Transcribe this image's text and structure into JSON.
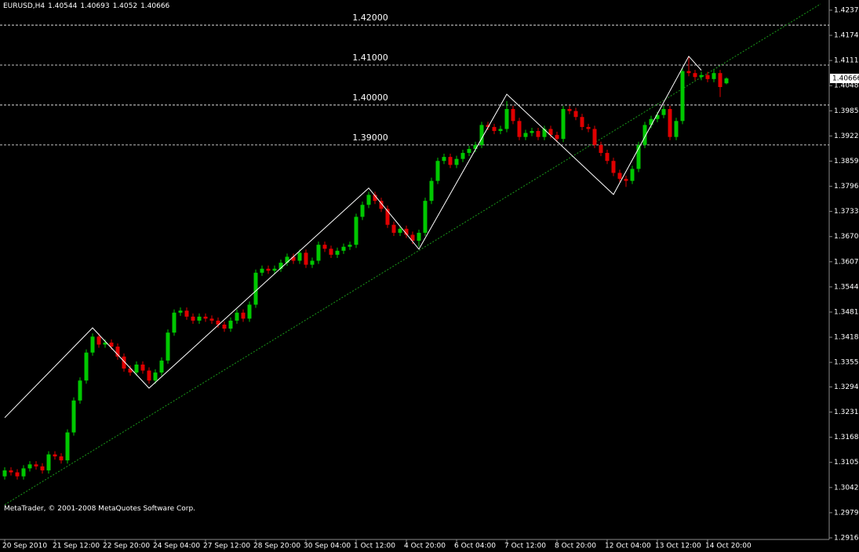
{
  "chart_data": {
    "type": "candlestick",
    "title": "EURUSD,H4",
    "footer": "MetaTrader, © 2001-2008 MetaQuotes Software Corp.",
    "categories": [
      "20 Sep 2010",
      null,
      null,
      null,
      null,
      null,
      null,
      null,
      "21 Sep 12:00",
      null,
      null,
      null,
      null,
      null,
      null,
      null,
      "22 Sep 20:00",
      null,
      null,
      null,
      null,
      null,
      null,
      null,
      "24 Sep 04:00",
      null,
      null,
      null,
      null,
      null,
      null,
      null,
      "27 Sep 12:00",
      null,
      null,
      null,
      null,
      null,
      null,
      null,
      "28 Sep 20:00",
      null,
      null,
      null,
      null,
      null,
      null,
      null,
      "30 Sep 04:00",
      null,
      null,
      null,
      null,
      null,
      null,
      null,
      "1 Oct 12:00",
      null,
      null,
      null,
      null,
      null,
      null,
      null,
      "4 Oct 20:00",
      null,
      null,
      null,
      null,
      null,
      null,
      null,
      "6 Oct 04:00",
      null,
      null,
      null,
      null,
      null,
      null,
      null,
      "7 Oct 12:00",
      null,
      null,
      null,
      null,
      null,
      null,
      null,
      "8 Oct 20:00",
      null,
      null,
      null,
      null,
      null,
      null,
      null,
      "12 Oct 04:00",
      null,
      null,
      null,
      null,
      null,
      null,
      null,
      "13 Oct 12:00",
      null,
      null,
      null,
      null,
      null,
      null,
      null,
      "14 Oct 20:00",
      null,
      null,
      null
    ],
    "open": [
      1.307,
      1.3085,
      1.308,
      1.307,
      1.309,
      1.31,
      1.3095,
      1.3085,
      1.3125,
      1.312,
      1.311,
      1.318,
      1.326,
      1.331,
      1.338,
      1.342,
      1.34,
      1.3405,
      1.3395,
      1.337,
      1.334,
      1.333,
      1.335,
      1.3335,
      1.331,
      1.333,
      1.336,
      1.343,
      1.348,
      1.3485,
      1.347,
      1.346,
      1.347,
      1.3465,
      1.346,
      1.345,
      1.344,
      1.346,
      1.348,
      1.3465,
      1.35,
      1.358,
      1.359,
      1.3585,
      1.359,
      1.3605,
      1.362,
      1.361,
      1.363,
      1.36,
      1.361,
      1.365,
      1.364,
      1.3625,
      1.3635,
      1.3645,
      1.365,
      1.372,
      1.375,
      1.3775,
      1.376,
      1.374,
      1.37,
      1.368,
      1.369,
      1.3675,
      1.366,
      1.368,
      1.376,
      1.381,
      1.386,
      1.387,
      1.385,
      1.3865,
      1.388,
      1.389,
      1.39,
      1.395,
      1.3945,
      1.3935,
      1.394,
      1.399,
      1.396,
      1.392,
      1.393,
      1.3935,
      1.392,
      1.394,
      1.3925,
      1.3915,
      1.399,
      1.3985,
      1.397,
      1.3945,
      1.394,
      1.39,
      1.388,
      1.386,
      1.383,
      1.3815,
      1.381,
      1.384,
      1.39,
      1.395,
      1.3965,
      1.3975,
      1.399,
      1.392,
      1.396,
      1.4085,
      1.408,
      1.407,
      1.4075,
      1.4065,
      1.408,
      1.40544
    ],
    "high": [
      1.3093,
      1.3093,
      1.3088,
      1.3098,
      1.3108,
      1.3108,
      1.3103,
      1.3133,
      1.3133,
      1.3128,
      1.3188,
      1.3268,
      1.3318,
      1.3388,
      1.3428,
      1.3428,
      1.3413,
      1.3413,
      1.3403,
      1.3378,
      1.3348,
      1.3358,
      1.3358,
      1.3343,
      1.3338,
      1.3368,
      1.3438,
      1.3488,
      1.3493,
      1.3493,
      1.3478,
      1.3478,
      1.3478,
      1.3473,
      1.3468,
      1.3458,
      1.3468,
      1.3488,
      1.3488,
      1.3508,
      1.3588,
      1.3598,
      1.3598,
      1.3598,
      1.3613,
      1.3628,
      1.3628,
      1.3638,
      1.3638,
      1.3618,
      1.3658,
      1.3658,
      1.3648,
      1.3643,
      1.3653,
      1.3658,
      1.3728,
      1.3758,
      1.3783,
      1.3783,
      1.3768,
      1.3748,
      1.3708,
      1.3698,
      1.3698,
      1.3683,
      1.3688,
      1.3768,
      1.3818,
      1.3868,
      1.3878,
      1.3878,
      1.3873,
      1.3888,
      1.3898,
      1.3908,
      1.3958,
      1.3958,
      1.3953,
      1.3948,
      1.401,
      1.3998,
      1.3968,
      1.3938,
      1.3943,
      1.3943,
      1.3948,
      1.3948,
      1.3933,
      1.3998,
      1.3998,
      1.3993,
      1.3978,
      1.3953,
      1.3948,
      1.3908,
      1.3888,
      1.3868,
      1.3838,
      1.3823,
      1.3848,
      1.3908,
      1.3958,
      1.3973,
      1.3983,
      1.3998,
      1.3998,
      1.3968,
      1.4093,
      1.412,
      1.4088,
      1.4083,
      1.4083,
      1.4088,
      1.4088,
      1.40693
    ],
    "low": [
      1.3062,
      1.3072,
      1.3062,
      1.3062,
      1.3082,
      1.3087,
      1.3077,
      1.3077,
      1.3112,
      1.3102,
      1.3102,
      1.3172,
      1.3252,
      1.3302,
      1.3372,
      1.3392,
      1.3392,
      1.3387,
      1.3362,
      1.3332,
      1.3322,
      1.3322,
      1.3327,
      1.3302,
      1.3302,
      1.3322,
      1.3352,
      1.3422,
      1.3472,
      1.3462,
      1.3452,
      1.3452,
      1.3457,
      1.3452,
      1.3442,
      1.3432,
      1.3432,
      1.3452,
      1.3457,
      1.3457,
      1.3492,
      1.3572,
      1.3577,
      1.3577,
      1.3582,
      1.3597,
      1.3602,
      1.3602,
      1.3592,
      1.3592,
      1.3602,
      1.3632,
      1.3617,
      1.3617,
      1.3627,
      1.3637,
      1.3642,
      1.3712,
      1.3742,
      1.3752,
      1.3732,
      1.3692,
      1.3672,
      1.3672,
      1.3667,
      1.3652,
      1.3645,
      1.3672,
      1.3752,
      1.3802,
      1.3852,
      1.3842,
      1.3842,
      1.3857,
      1.3872,
      1.3882,
      1.3892,
      1.3937,
      1.3927,
      1.3927,
      1.3932,
      1.3952,
      1.3912,
      1.3912,
      1.3922,
      1.3912,
      1.3912,
      1.3917,
      1.3907,
      1.3907,
      1.3977,
      1.3962,
      1.3937,
      1.3932,
      1.3892,
      1.3872,
      1.3852,
      1.3822,
      1.3807,
      1.3795,
      1.3802,
      1.3832,
      1.3892,
      1.3942,
      1.3957,
      1.3967,
      1.3912,
      1.3912,
      1.3952,
      1.4072,
      1.4062,
      1.4062,
      1.4057,
      1.4057,
      1.402,
      1.4052
    ],
    "close": [
      1.3085,
      1.308,
      1.307,
      1.309,
      1.31,
      1.3095,
      1.3085,
      1.3125,
      1.312,
      1.311,
      1.318,
      1.326,
      1.331,
      1.338,
      1.342,
      1.34,
      1.3405,
      1.3395,
      1.337,
      1.334,
      1.333,
      1.335,
      1.3335,
      1.331,
      1.333,
      1.336,
      1.343,
      1.348,
      1.3485,
      1.347,
      1.346,
      1.347,
      1.3465,
      1.346,
      1.345,
      1.344,
      1.346,
      1.348,
      1.3465,
      1.35,
      1.358,
      1.359,
      1.3585,
      1.359,
      1.3605,
      1.362,
      1.361,
      1.363,
      1.36,
      1.361,
      1.365,
      1.364,
      1.3625,
      1.3635,
      1.3645,
      1.365,
      1.372,
      1.375,
      1.3775,
      1.376,
      1.374,
      1.37,
      1.368,
      1.369,
      1.3675,
      1.366,
      1.368,
      1.376,
      1.381,
      1.386,
      1.387,
      1.385,
      1.3865,
      1.388,
      1.389,
      1.39,
      1.395,
      1.3945,
      1.3935,
      1.394,
      1.399,
      1.396,
      1.392,
      1.393,
      1.3935,
      1.392,
      1.394,
      1.3925,
      1.3915,
      1.399,
      1.3985,
      1.397,
      1.3945,
      1.394,
      1.39,
      1.388,
      1.386,
      1.383,
      1.3815,
      1.381,
      1.384,
      1.39,
      1.395,
      1.3965,
      1.3975,
      1.399,
      1.392,
      1.396,
      1.4085,
      1.408,
      1.407,
      1.4075,
      1.4065,
      1.408,
      1.4045,
      1.40666
    ],
    "up_color": "#00c800",
    "down_color": "#e00000",
    "ylim": [
      1.2912,
      1.4263
    ],
    "yticks": [
      1.42375,
      1.41745,
      1.41115,
      1.40485,
      1.39855,
      1.39225,
      1.38595,
      1.37965,
      1.37335,
      1.36705,
      1.36075,
      1.35445,
      1.34815,
      1.34185,
      1.33555,
      {
        "value": 1.3294,
        "label": "1.32940"
      },
      {
        "value": 1.3231,
        "label": "1.32310"
      },
      {
        "value": 1.3168,
        "label": "1.31680"
      },
      {
        "value": 1.3105,
        "label": "1.31050"
      },
      {
        "value": 1.3042,
        "label": "1.30420"
      },
      {
        "value": 1.2979,
        "label": "1.29790"
      },
      {
        "value": 1.2916,
        "label": "1.29160"
      }
    ],
    "levels": [
      {
        "value": 1.42,
        "label": "1.42000"
      },
      {
        "value": 1.41,
        "label": "1.41000"
      },
      {
        "value": 1.4,
        "label": "1.40000"
      },
      {
        "value": 1.39,
        "label": "1.39000"
      }
    ],
    "level_color": "#ffffff",
    "zigzag": {
      "x": [
        0,
        14,
        23,
        58,
        66,
        80,
        97,
        109,
        111
      ],
      "values": [
        1.3217,
        1.3442,
        1.3291,
        1.3792,
        1.3639,
        1.4027,
        1.3776,
        1.4122,
        1.4087
      ],
      "color": "#ffffff"
    },
    "trendline": {
      "x": [
        0,
        130
      ],
      "values": [
        1.2999,
        1.4253
      ],
      "color": "#1a9a1a"
    },
    "grid": false
  }
}
